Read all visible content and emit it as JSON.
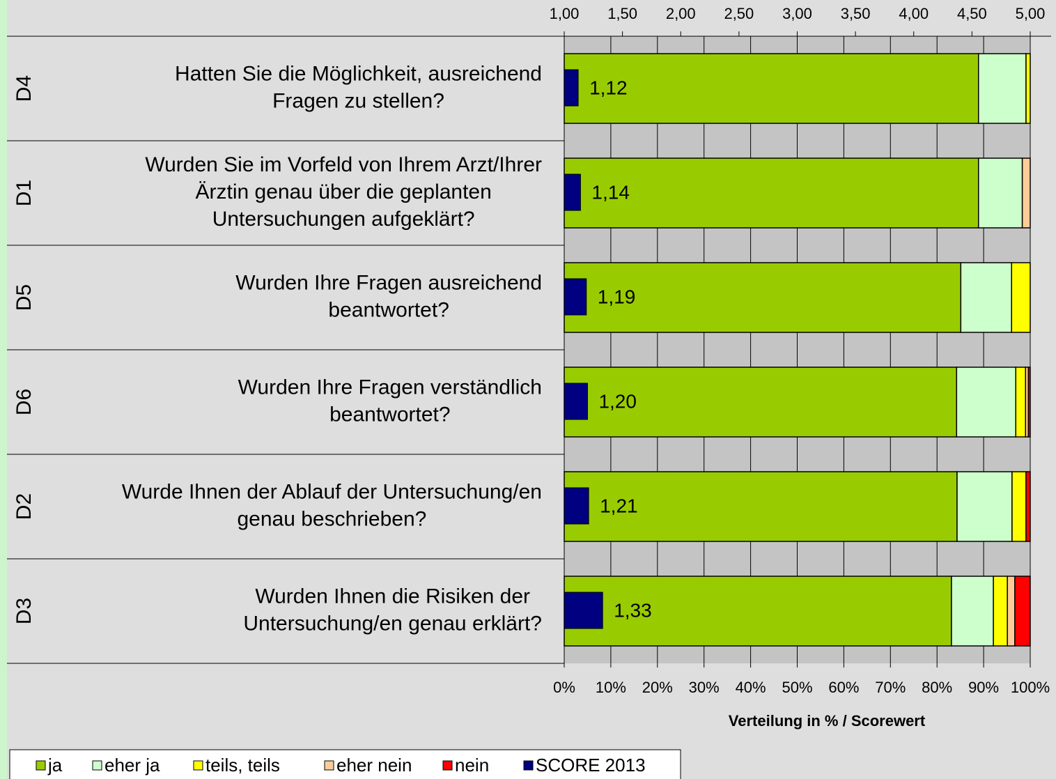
{
  "chart_data": {
    "type": "stacked-bar-horizontal",
    "categories": [
      "D4",
      "D1",
      "D5",
      "D6",
      "D2",
      "D3"
    ],
    "questions": [
      [
        "Hatten Sie die Möglichkeit, ausreichend",
        "Fragen zu stellen?"
      ],
      [
        "Wurden Sie im Vorfeld von Ihrem Arzt/Ihrer",
        "Ärztin genau über die geplanten",
        "Untersuchungen aufgeklärt?"
      ],
      [
        "Wurden Ihre Fragen ausreichend",
        "beantwortet?"
      ],
      [
        "Wurden Ihre Fragen verständlich",
        "beantwortet?"
      ],
      [
        "Wurde Ihnen der Ablauf der Untersuchung/en",
        "genau beschrieben?"
      ],
      [
        "Wurden Ihnen die Risiken der",
        "Untersuchung/en genau erklärt?"
      ]
    ],
    "series": [
      {
        "name": "ja",
        "color": "#99cc00",
        "values": [
          88.9,
          88.9,
          85.1,
          84.2,
          84.3,
          83.1
        ]
      },
      {
        "name": "eher ja",
        "color": "#ccffcc",
        "values": [
          10.2,
          9.4,
          10.9,
          12.7,
          11.8,
          9.0
        ]
      },
      {
        "name": "teils, teils",
        "color": "#ffff00",
        "values": [
          0.9,
          0,
          4.0,
          2.1,
          3.0,
          3.0
        ]
      },
      {
        "name": "eher nein",
        "color": "#ffcc99",
        "values": [
          0,
          1.7,
          0,
          0.6,
          0,
          1.6
        ]
      },
      {
        "name": "nein",
        "color": "#ff0000",
        "values": [
          0,
          0,
          0,
          0.4,
          0.9,
          3.3
        ]
      },
      {
        "name": "SCORE 2013",
        "color": "#000080",
        "axis": "x2",
        "values": [
          1.12,
          1.14,
          1.19,
          1.2,
          1.21,
          1.33
        ],
        "value_labels": [
          "1,12",
          "1,14",
          "1,19",
          "1,20",
          "1,21",
          "1,33"
        ]
      }
    ],
    "xlim": [
      0,
      100
    ],
    "xticks": [
      {
        "value": 0,
        "label": "0%"
      },
      {
        "value": 10,
        "label": "10%"
      },
      {
        "value": 20,
        "label": "20%"
      },
      {
        "value": 30,
        "label": "30%"
      },
      {
        "value": 40,
        "label": "40%"
      },
      {
        "value": 50,
        "label": "50%"
      },
      {
        "value": 60,
        "label": "60%"
      },
      {
        "value": 70,
        "label": "70%"
      },
      {
        "value": 80,
        "label": "80%"
      },
      {
        "value": 90,
        "label": "90%"
      },
      {
        "value": 100,
        "label": "100%"
      }
    ],
    "x2lim": [
      1,
      5
    ],
    "x2ticks": [
      {
        "value": 1,
        "label": "1,00"
      },
      {
        "value": 1.5,
        "label": "1,50"
      },
      {
        "value": 2,
        "label": "2,00"
      },
      {
        "value": 2.5,
        "label": "2,50"
      },
      {
        "value": 3,
        "label": "3,00"
      },
      {
        "value": 3.5,
        "label": "3,50"
      },
      {
        "value": 4,
        "label": "4,00"
      },
      {
        "value": 4.5,
        "label": "4,50"
      },
      {
        "value": 5,
        "label": "5,00"
      }
    ],
    "xlabel": "Verteilung in % / Scorewert",
    "grid": true,
    "legend": "bottom-left"
  }
}
